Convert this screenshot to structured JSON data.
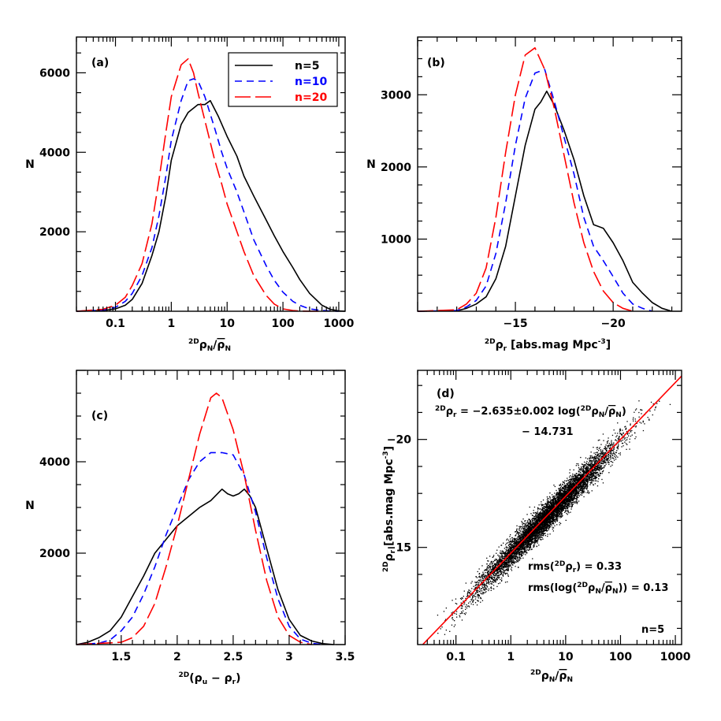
{
  "chart_data": [
    {
      "panel": "(a)",
      "type": "line",
      "xscale": "log",
      "xlim": [
        0.02,
        1300
      ],
      "ylim": [
        0,
        6900
      ],
      "xticks": [
        0.1,
        1,
        10,
        100,
        1000
      ],
      "xtick_labels": [
        "0.1",
        "1",
        "10",
        "100",
        "1000"
      ],
      "yticks": [
        2000,
        4000,
        6000
      ],
      "ytick_labels": [
        "2000",
        "4000",
        "6000"
      ],
      "xlabel": "2D ρN/ρN",
      "xlabel_parts": {
        "sup": "2D",
        "main": "ρ",
        "sub": "N",
        "sep": "/",
        "over": "ρ",
        "over_sub": "N"
      },
      "ylabel": "N",
      "legend": {
        "placement": "top-right",
        "entries": [
          {
            "label": "n=5",
            "color": "#000000",
            "dash": "solid"
          },
          {
            "label": "n=10",
            "color": "#0000ff",
            "dash": "short"
          },
          {
            "label": "n=20",
            "color": "#ff0000",
            "dash": "long"
          }
        ]
      },
      "series": [
        {
          "name": "n=5",
          "color": "#000000",
          "dash": "solid",
          "x": [
            0.02,
            0.06,
            0.1,
            0.15,
            0.2,
            0.3,
            0.45,
            0.6,
            0.8,
            1.0,
            1.5,
            2.0,
            3.0,
            4.0,
            5.0,
            7.0,
            10,
            15,
            20,
            30,
            50,
            70,
            100,
            150,
            200,
            300,
            500,
            700,
            1000,
            1300
          ],
          "y": [
            0,
            20,
            60,
            150,
            300,
            700,
            1400,
            2000,
            2900,
            3800,
            4700,
            5000,
            5200,
            5200,
            5300,
            4900,
            4400,
            3900,
            3400,
            2900,
            2300,
            1900,
            1500,
            1100,
            800,
            450,
            150,
            50,
            10,
            0
          ]
        },
        {
          "name": "n=10",
          "color": "#0000ff",
          "dash": "short",
          "x": [
            0.02,
            0.06,
            0.1,
            0.15,
            0.2,
            0.3,
            0.45,
            0.6,
            0.8,
            1.0,
            1.5,
            2.0,
            2.5,
            3.0,
            4.0,
            6.0,
            8.0,
            10,
            15,
            20,
            30,
            50,
            70,
            100,
            150,
            200,
            300,
            500,
            700,
            1000
          ],
          "y": [
            0,
            30,
            100,
            250,
            450,
            900,
            1600,
            2400,
            3400,
            4300,
            5300,
            5800,
            5850,
            5800,
            5400,
            4600,
            4000,
            3600,
            3000,
            2500,
            1800,
            1150,
            780,
            480,
            250,
            150,
            60,
            20,
            5,
            0
          ]
        },
        {
          "name": "n=20",
          "color": "#ff0000",
          "dash": "long",
          "x": [
            0.02,
            0.06,
            0.1,
            0.15,
            0.2,
            0.3,
            0.45,
            0.6,
            0.8,
            1.0,
            1.5,
            2.0,
            2.5,
            3.0,
            4.0,
            6.0,
            8.0,
            10,
            15,
            20,
            30,
            50,
            70,
            100,
            150,
            200,
            300,
            500
          ],
          "y": [
            0,
            50,
            150,
            350,
            650,
            1200,
            2200,
            3300,
            4500,
            5400,
            6200,
            6350,
            6000,
            5500,
            4800,
            3800,
            3200,
            2700,
            2000,
            1500,
            900,
            400,
            180,
            60,
            20,
            5,
            0,
            0
          ]
        }
      ]
    },
    {
      "panel": "(b)",
      "type": "line",
      "xlim": [
        -10,
        -23.5
      ],
      "ylim": [
        0,
        3800
      ],
      "xticks": [
        -15,
        -20
      ],
      "xtick_labels": [
        "−15",
        "−20"
      ],
      "yticks": [
        1000,
        2000,
        3000
      ],
      "ytick_labels": [
        "1000",
        "2000",
        "3000"
      ],
      "xlabel": "2D ρr [abs.mag Mpc-3]",
      "xlabel_parts": {
        "sup": "2D",
        "main": "ρ",
        "sub": "r",
        "rest": " [abs.mag Mpc",
        "pow": "-3",
        "end": "]"
      },
      "ylabel": "N",
      "series": [
        {
          "name": "n=5",
          "color": "#000000",
          "dash": "solid",
          "x": [
            -10,
            -12,
            -12.5,
            -13,
            -13.5,
            -14,
            -14.5,
            -15,
            -15.5,
            -16,
            -16.3,
            -16.6,
            -17,
            -17.5,
            -18,
            -18.5,
            -19,
            -19.5,
            -20,
            -20.5,
            -21,
            -21.5,
            -22,
            -22.5,
            -23
          ],
          "y": [
            0,
            5,
            40,
            100,
            200,
            450,
            900,
            1600,
            2300,
            2800,
            2900,
            3050,
            2850,
            2500,
            2100,
            1600,
            1200,
            1150,
            950,
            700,
            400,
            250,
            120,
            40,
            0
          ]
        },
        {
          "name": "n=10",
          "color": "#0000ff",
          "dash": "short",
          "x": [
            -10,
            -12,
            -12.5,
            -13,
            -13.5,
            -14,
            -14.5,
            -15,
            -15.5,
            -16,
            -16.5,
            -17,
            -17.5,
            -18,
            -18.5,
            -19,
            -19.5,
            -20,
            -20.5,
            -21,
            -21.5,
            -22
          ],
          "y": [
            0,
            10,
            60,
            150,
            350,
            800,
            1500,
            2300,
            2950,
            3300,
            3350,
            2900,
            2400,
            1900,
            1300,
            900,
            700,
            480,
            250,
            100,
            40,
            0
          ]
        },
        {
          "name": "n=20",
          "color": "#ff0000",
          "dash": "long",
          "x": [
            -10,
            -12,
            -12.5,
            -13,
            -13.5,
            -14,
            -14.5,
            -15,
            -15.5,
            -16,
            -16.5,
            -17,
            -17.5,
            -18,
            -18.5,
            -19,
            -19.5,
            -20,
            -20.5,
            -21
          ],
          "y": [
            0,
            20,
            100,
            250,
            600,
            1300,
            2200,
            3000,
            3550,
            3650,
            3350,
            2800,
            2150,
            1500,
            950,
            550,
            280,
            120,
            40,
            0
          ]
        }
      ]
    },
    {
      "panel": "(c)",
      "type": "line",
      "xlim": [
        1.1,
        3.5
      ],
      "ylim": [
        0,
        6000
      ],
      "xticks": [
        1.5,
        2,
        2.5,
        3,
        3.5
      ],
      "xtick_labels": [
        "1.5",
        "2",
        "2.5",
        "3",
        "3.5"
      ],
      "yticks": [
        2000,
        4000
      ],
      "ytick_labels": [
        "2000",
        "4000"
      ],
      "xlabel": "2D(ρu − ρr)",
      "xlabel_parts": {
        "sup": "2D",
        "open": "(",
        "a": "ρ",
        "a_sub": "u",
        "minus": " − ",
        "b": "ρ",
        "b_sub": "r",
        "close": ")"
      },
      "ylabel": "N",
      "series": [
        {
          "name": "n=5",
          "color": "#000000",
          "dash": "solid",
          "x": [
            1.1,
            1.2,
            1.3,
            1.4,
            1.5,
            1.6,
            1.7,
            1.8,
            1.9,
            2.0,
            2.1,
            2.2,
            2.3,
            2.4,
            2.45,
            2.5,
            2.55,
            2.6,
            2.65,
            2.7,
            2.8,
            2.9,
            3.0,
            3.1,
            3.2,
            3.3,
            3.4
          ],
          "y": [
            0,
            50,
            150,
            300,
            600,
            1050,
            1500,
            2000,
            2300,
            2600,
            2800,
            3000,
            3150,
            3400,
            3300,
            3250,
            3300,
            3400,
            3250,
            3000,
            2100,
            1200,
            550,
            200,
            80,
            20,
            0
          ]
        },
        {
          "name": "n=10",
          "color": "#0000ff",
          "dash": "short",
          "x": [
            1.1,
            1.3,
            1.4,
            1.5,
            1.6,
            1.7,
            1.8,
            1.9,
            2.0,
            2.1,
            2.2,
            2.3,
            2.4,
            2.5,
            2.6,
            2.7,
            2.8,
            2.9,
            3.0,
            3.1,
            3.2,
            3.3
          ],
          "y": [
            0,
            30,
            100,
            300,
            600,
            1100,
            1700,
            2400,
            3000,
            3600,
            4000,
            4200,
            4200,
            4150,
            3700,
            2900,
            1900,
            1000,
            400,
            120,
            30,
            0
          ]
        },
        {
          "name": "n=20",
          "color": "#ff0000",
          "dash": "long",
          "x": [
            1.1,
            1.5,
            1.6,
            1.7,
            1.8,
            1.9,
            2.0,
            2.1,
            2.2,
            2.3,
            2.35,
            2.4,
            2.5,
            2.6,
            2.7,
            2.8,
            2.9,
            3.0,
            3.1,
            3.2
          ],
          "y": [
            0,
            50,
            150,
            400,
            900,
            1700,
            2600,
            3600,
            4600,
            5400,
            5500,
            5400,
            4700,
            3700,
            2500,
            1400,
            600,
            200,
            50,
            0
          ]
        }
      ]
    },
    {
      "panel": "(d)",
      "type": "scatter",
      "xscale": "log",
      "xlim": [
        0.02,
        1300
      ],
      "ylim": [
        -10.5,
        -23.2
      ],
      "xticks": [
        0.1,
        1,
        10,
        100,
        1000
      ],
      "xtick_labels": [
        "0.1",
        "1",
        "10",
        "100",
        "1000"
      ],
      "yticks": [
        -15,
        -20
      ],
      "ytick_labels": [
        "−15",
        "−20"
      ],
      "xlabel": "2D ρN/ρN",
      "xlabel_parts": {
        "sup": "2D",
        "main": "ρ",
        "sub": "N",
        "sep": "/",
        "over": "ρ",
        "over_sub": "N"
      },
      "ylabel": "2D ρr [abs.mag Mpc-3]",
      "ylabel_parts": {
        "sup": "2D",
        "main": "ρ",
        "sub": "r",
        "rest": " [abs.mag Mpc",
        "pow": "-3",
        "end": "]"
      },
      "fit": {
        "slope": -2.635,
        "intercept": -14.731,
        "color": "#ff0000"
      },
      "cloud": {
        "color": "#000000",
        "log_x_range": [
          -1.35,
          3.1
        ],
        "scatter_rms": 0.33
      },
      "annotations": {
        "eq_a": "2Dρr = −2.635±0.002 log(2DρN/ρN)",
        "eq_b": "− 14.731",
        "rms_1": "rms(2Dρr) = 0.33",
        "rms_2": "rms(log(2DρN/ρN)) = 0.13",
        "n": "n=5"
      }
    }
  ],
  "labels": {
    "a_tag": "(a)",
    "b_tag": "(b)",
    "c_tag": "(c)",
    "d_tag": "(d)",
    "ylabel_N": "N",
    "d_eq_lhs_sup": "2D",
    "d_eq_lhs": "ρ",
    "d_eq_lhs_sub": "r",
    "d_eq_mid": " = −2.635±0.002 log(",
    "d_eq_sup2": "2D",
    "d_eq_rho2": "ρ",
    "d_eq_sub2": "N",
    "d_eq_slash": "/",
    "d_eq_rho3": "ρ",
    "d_eq_sub3": "N",
    "d_eq_close": ")",
    "d_eq_const": "− 14.731",
    "d_rms1_pre": "rms(",
    "d_rms1_sup": "2D",
    "d_rms1_rho": "ρ",
    "d_rms1_sub": "r",
    "d_rms1_post": ") = 0.33",
    "d_rms2_pre": "rms(log(",
    "d_rms2_sup": "2D",
    "d_rms2_rho": "ρ",
    "d_rms2_sub": "N",
    "d_rms2_slash": "/",
    "d_rms2_rho2": "ρ",
    "d_rms2_sub2": "N",
    "d_rms2_post": ")) = 0.13",
    "d_n": "n=5"
  }
}
